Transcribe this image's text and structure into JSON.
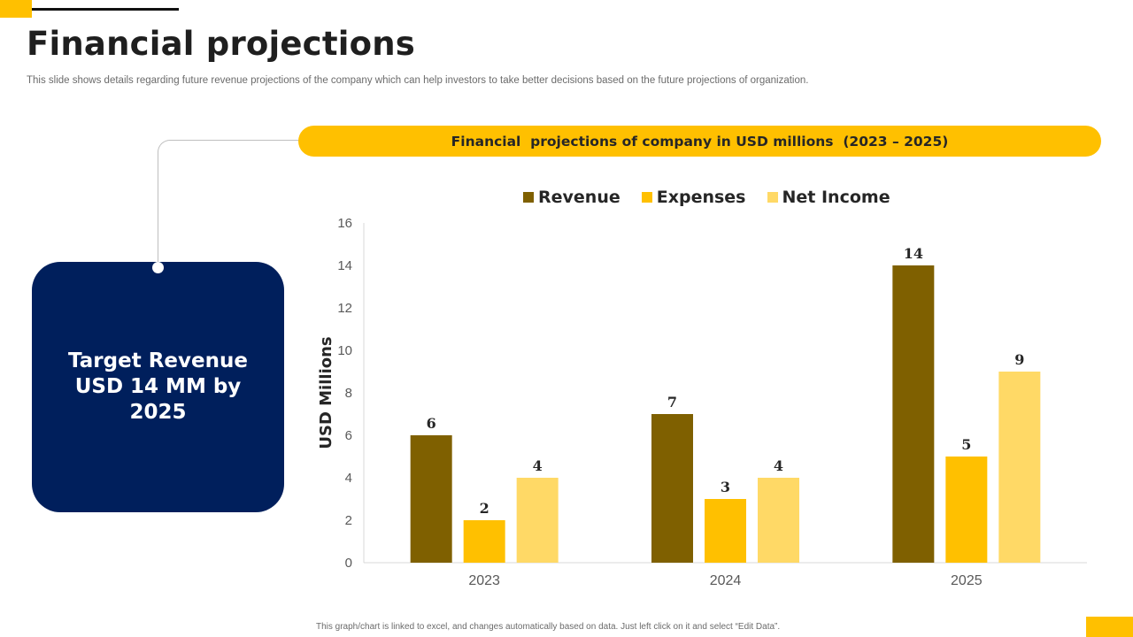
{
  "slide": {
    "title": "Financial projections",
    "subtitle": "This slide shows details regarding future revenue projections of the company which can help investors to take better decisions based on the future projections of organization.",
    "footnote": "This graph/chart is linked to excel, and changes automatically based on data. Just left click on it and select “Edit Data”.",
    "accent_color": "#FFC000",
    "card_color": "#001F5C"
  },
  "target_card": {
    "text": "Target Revenue USD 14 MM by 2025"
  },
  "chart_banner": {
    "text": "Financial  projections of company in USD millions  (2023 – 2025)"
  },
  "chart_data": {
    "type": "bar",
    "title": "Financial  projections of company in USD millions  (2023 – 2025)",
    "categories": [
      "2023",
      "2024",
      "2025"
    ],
    "series": [
      {
        "name": "Revenue",
        "color": "#7F6000",
        "values": [
          6,
          7,
          14
        ]
      },
      {
        "name": "Expenses",
        "color": "#FFC000",
        "values": [
          2,
          3,
          5
        ]
      },
      {
        "name": "Net Income",
        "color": "#FFD966",
        "values": [
          4,
          4,
          9
        ]
      }
    ],
    "xlabel": "",
    "ylabel": "USD Millions",
    "ylim": [
      0,
      16
    ],
    "yticks": [
      0,
      2,
      4,
      6,
      8,
      10,
      12,
      14,
      16
    ],
    "grid": false,
    "legend_position": "top"
  }
}
